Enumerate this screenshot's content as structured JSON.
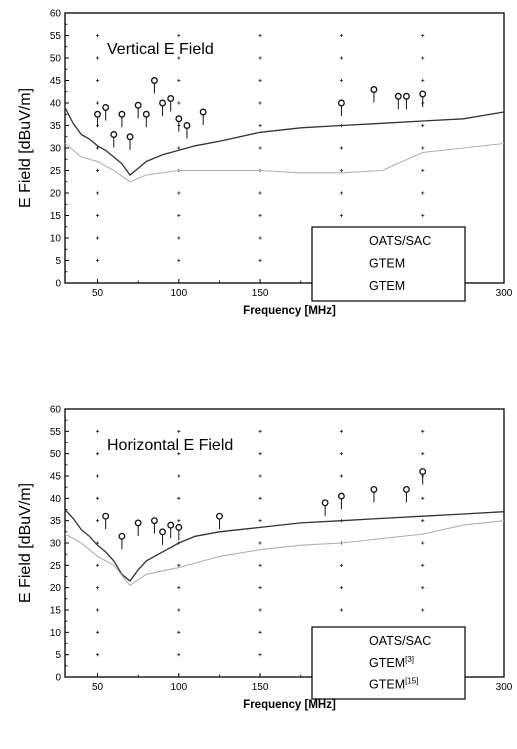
{
  "chart_data": [
    {
      "type": "line",
      "title": "",
      "annotation": "Vertical E Field",
      "xlabel": "Frequency [MHz]",
      "ylabel": "E Field [dBuV/m]",
      "xlim": [
        30,
        300
      ],
      "ylim": [
        0,
        60
      ],
      "x_ticks": [
        50,
        100,
        150,
        200,
        250,
        300
      ],
      "y_ticks": [
        0,
        5,
        10,
        15,
        20,
        25,
        30,
        35,
        40,
        45,
        50,
        55,
        60
      ],
      "grid": "cross markers at major ticks",
      "legend_position": "lower-right",
      "legend": [
        "OATS/SAC",
        "GTEM",
        "GTEM"
      ],
      "series": [
        {
          "style": "markers",
          "color": "#111111",
          "x": [
            50,
            55,
            60,
            65,
            70,
            75,
            80,
            85,
            90,
            95,
            100,
            105,
            115,
            200,
            220,
            235,
            240,
            250
          ],
          "y": [
            37.5,
            39,
            33,
            37.5,
            32.5,
            39.5,
            37.5,
            45,
            40,
            41,
            36.5,
            35,
            38,
            40,
            43,
            41.5,
            41.5,
            42
          ]
        },
        {
          "style": "line",
          "color": "#333333",
          "x": [
            30,
            35,
            40,
            45,
            50,
            55,
            60,
            65,
            70,
            75,
            80,
            90,
            100,
            110,
            125,
            150,
            175,
            200,
            225,
            250,
            275,
            300
          ],
          "y": [
            39,
            35.5,
            33,
            32,
            30.5,
            29.5,
            28,
            26.5,
            24,
            25.5,
            27,
            28.5,
            29.5,
            30.5,
            31.5,
            33.5,
            34.5,
            35,
            35.5,
            36,
            36.5,
            38
          ]
        },
        {
          "style": "line",
          "color": "#b0b0b0",
          "x": [
            30,
            40,
            50,
            60,
            70,
            80,
            100,
            125,
            150,
            175,
            200,
            225,
            250,
            275,
            300
          ],
          "y": [
            31,
            28,
            27,
            25,
            22.5,
            24,
            25,
            25,
            25,
            24.5,
            24.5,
            25,
            29,
            30,
            31
          ]
        }
      ]
    },
    {
      "type": "line",
      "title": "",
      "annotation": "Horizontal E Field",
      "xlabel": "Frequency [MHz]",
      "ylabel": "E Field [dBuV/m]",
      "xlim": [
        30,
        300
      ],
      "ylim": [
        0,
        60
      ],
      "x_ticks": [
        50,
        100,
        150,
        200,
        250,
        300
      ],
      "y_ticks": [
        0,
        5,
        10,
        15,
        20,
        25,
        30,
        35,
        40,
        45,
        50,
        55,
        60
      ],
      "grid": "cross markers at major ticks",
      "legend_position": "lower-right",
      "legend": [
        {
          "label": "OATS/SAC",
          "sup": ""
        },
        {
          "label": "GTEM",
          "sup": "[3]"
        },
        {
          "label": "GTEM",
          "sup": "[15]"
        }
      ],
      "series": [
        {
          "style": "markers",
          "color": "#111111",
          "x": [
            55,
            65,
            75,
            85,
            90,
            95,
            100,
            125,
            190,
            200,
            220,
            240,
            250
          ],
          "y": [
            36,
            31.5,
            34.5,
            35,
            32.5,
            34,
            33.5,
            36,
            39,
            40.5,
            42,
            42,
            46
          ]
        },
        {
          "style": "line",
          "color": "#333333",
          "x": [
            30,
            35,
            40,
            45,
            50,
            55,
            60,
            65,
            70,
            75,
            80,
            90,
            100,
            110,
            125,
            150,
            175,
            200,
            225,
            250,
            275,
            300
          ],
          "y": [
            37.5,
            35.5,
            33,
            31.5,
            29.5,
            28,
            26,
            23,
            21.5,
            24,
            26,
            28,
            30,
            31.5,
            32.5,
            33.5,
            34.5,
            35,
            35.5,
            36,
            36.5,
            37
          ]
        },
        {
          "style": "line",
          "color": "#b0b0b0",
          "x": [
            30,
            40,
            50,
            60,
            70,
            80,
            100,
            125,
            150,
            175,
            200,
            225,
            250,
            275,
            300
          ],
          "y": [
            32,
            30,
            27,
            25,
            20.5,
            23,
            24.5,
            27,
            28.5,
            29.5,
            30,
            31,
            32,
            34,
            35
          ]
        }
      ]
    }
  ]
}
